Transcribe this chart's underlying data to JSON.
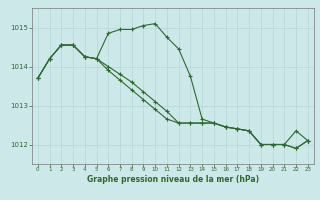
{
  "s1": [
    1013.7,
    1014.2,
    1014.55,
    1014.55,
    1014.25,
    1014.2,
    1014.85,
    1014.95,
    1014.95,
    1015.05,
    1015.1,
    1014.75,
    1014.45,
    1013.75,
    1012.65,
    1012.55,
    1012.45,
    1012.4,
    1012.35,
    1012.0,
    1012.0,
    1012.0,
    1012.35,
    1012.1
  ],
  "s2": [
    1013.7,
    1014.2,
    1014.55,
    1014.55,
    1014.25,
    1014.2,
    1013.9,
    1013.65,
    1013.4,
    1013.15,
    1012.9,
    1012.65,
    1012.55,
    1012.55,
    1012.55,
    1012.55,
    1012.45,
    1012.4,
    1012.35,
    1012.0,
    1012.0,
    1012.0,
    1011.9,
    1012.1
  ],
  "s3": [
    1013.7,
    1014.2,
    1014.55,
    1014.55,
    1014.25,
    1014.2,
    1014.0,
    1013.8,
    1013.6,
    1013.35,
    1013.1,
    1012.85,
    1012.55,
    1012.55,
    1012.55,
    1012.55,
    1012.45,
    1012.4,
    1012.35,
    1012.0,
    1012.0,
    1012.0,
    1011.9,
    1012.1
  ],
  "hours": [
    0,
    1,
    2,
    3,
    4,
    5,
    6,
    7,
    8,
    9,
    10,
    11,
    12,
    13,
    14,
    15,
    16,
    17,
    18,
    19,
    20,
    21,
    22,
    23
  ],
  "ylim": [
    1011.5,
    1015.5
  ],
  "yticks": [
    1012,
    1013,
    1014,
    1015
  ],
  "xticks": [
    0,
    1,
    2,
    3,
    4,
    5,
    6,
    7,
    8,
    9,
    10,
    11,
    12,
    13,
    14,
    15,
    16,
    17,
    18,
    19,
    20,
    21,
    22,
    23
  ],
  "line_color": "#2d6a2d",
  "bg_color": "#cce8e8",
  "grid_color": "#b0d4d4",
  "xlabel": "Graphe pression niveau de la mer (hPa)",
  "marker": "+",
  "markersize": 3,
  "linewidth": 0.8
}
